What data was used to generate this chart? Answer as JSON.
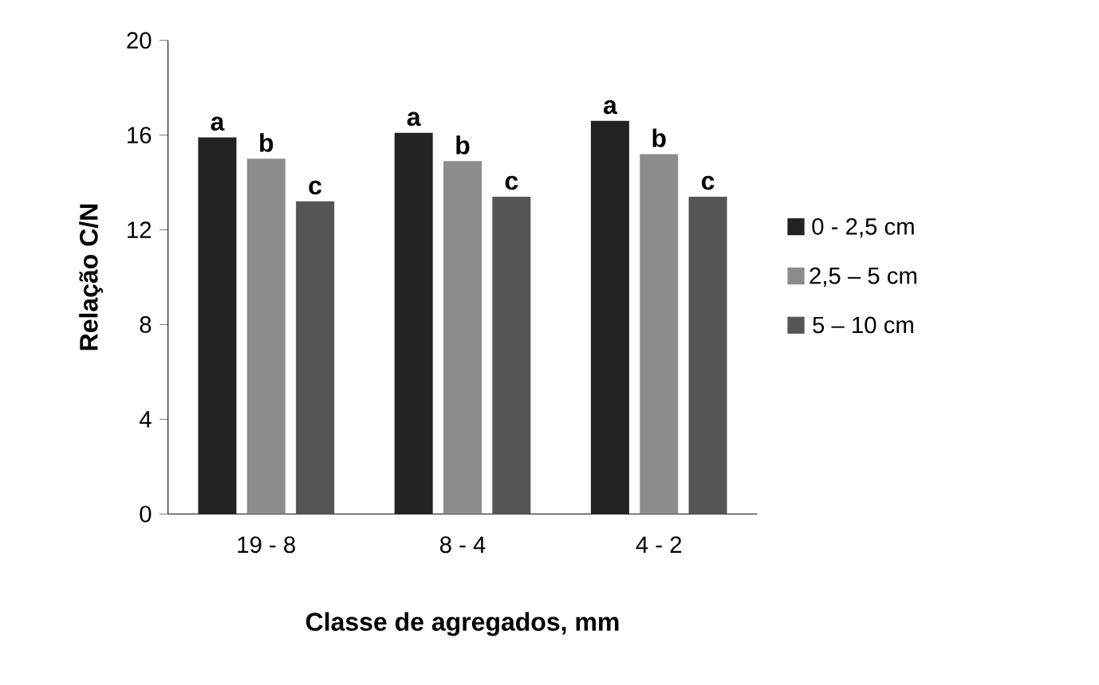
{
  "chart_data": {
    "type": "bar",
    "xlabel": "Classe de agregados, mm",
    "ylabel": "Relação C/N",
    "categories": [
      "19 - 8",
      "8 - 4",
      "4 - 2"
    ],
    "series": [
      {
        "name": "0 - 2,5 cm",
        "color": "#222222",
        "values": [
          15.9,
          16.1,
          16.6
        ],
        "value_labels": [
          "a",
          "a",
          "a"
        ]
      },
      {
        "name": "2,5 – 5 cm",
        "color": "#8c8c8c",
        "values": [
          15.0,
          14.9,
          15.2
        ],
        "value_labels": [
          "b",
          "b",
          "b"
        ]
      },
      {
        "name": "5 – 10 cm",
        "color": "#555555",
        "values": [
          13.2,
          13.4,
          13.4
        ],
        "value_labels": [
          "c",
          "c",
          "c"
        ]
      }
    ],
    "ylim": [
      0,
      20
    ],
    "yticks": [
      0,
      4,
      8,
      12,
      16,
      20
    ],
    "grid": false,
    "legend": "right"
  }
}
